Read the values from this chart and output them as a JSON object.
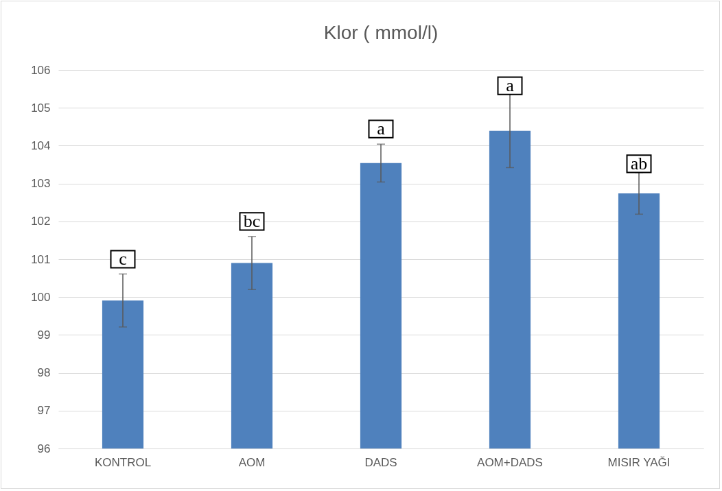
{
  "chart_data": {
    "type": "bar",
    "title": "Klor ( mmol/l)",
    "categories": [
      "KONTROL",
      "AOM",
      "DADS",
      "AOM+DADS",
      "MISIR YAĞI"
    ],
    "values": [
      99.91,
      100.9,
      103.54,
      104.39,
      102.74
    ],
    "errors": [
      0.7,
      0.7,
      0.5,
      0.97,
      0.55
    ],
    "color": "#4f81bd",
    "ylim": [
      96,
      106
    ],
    "yticks": [
      96,
      97,
      98,
      99,
      100,
      101,
      102,
      103,
      104,
      105,
      106
    ],
    "grid": "y",
    "annotations": [
      {
        "text": "c",
        "x": "KONTROL",
        "y": 101.0
      },
      {
        "text": "bc",
        "x": "AOM",
        "y": 102.0
      },
      {
        "text": "a",
        "x": "DADS",
        "y": 104.44
      },
      {
        "text": "a",
        "x": "AOM+DADS",
        "y": 105.58
      },
      {
        "text": "ab",
        "x": "MISIR YAĞI",
        "y": 103.52
      }
    ]
  }
}
